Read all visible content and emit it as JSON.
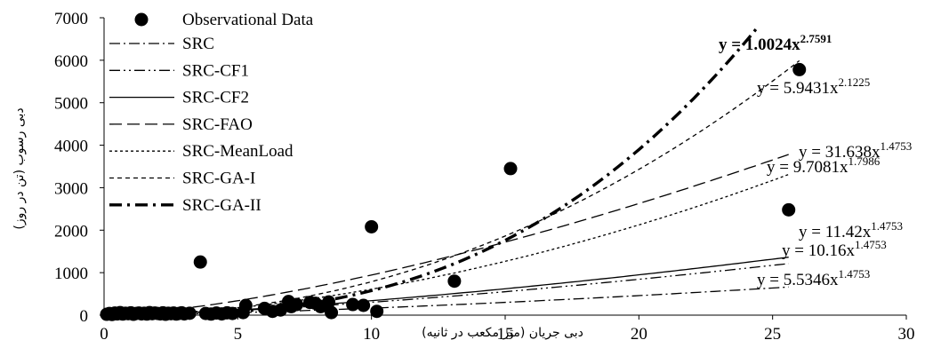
{
  "chart_data": {
    "type": "scatter",
    "xlabel": "دبی جریان (متر مکعب در ثانیه)",
    "ylabel": "دبی رسوب (تن در روز)",
    "xlim": [
      0,
      30
    ],
    "ylim": [
      0,
      7000
    ],
    "x_ticks": [
      "0",
      "5",
      "10",
      "15",
      "20",
      "25",
      "30"
    ],
    "y_ticks": [
      "0",
      "1000",
      "2000",
      "3000",
      "4000",
      "5000",
      "6000",
      "7000"
    ],
    "grid": false,
    "legend_position": "top-left",
    "observations": {
      "name": "Observational Data",
      "points": [
        [
          0.1,
          20
        ],
        [
          0.2,
          40
        ],
        [
          0.3,
          15
        ],
        [
          0.4,
          50
        ],
        [
          0.5,
          30
        ],
        [
          0.6,
          60
        ],
        [
          0.7,
          25
        ],
        [
          0.8,
          45
        ],
        [
          0.9,
          35
        ],
        [
          1.0,
          55
        ],
        [
          1.1,
          20
        ],
        [
          1.2,
          40
        ],
        [
          1.3,
          50
        ],
        [
          1.4,
          30
        ],
        [
          1.5,
          45
        ],
        [
          1.6,
          25
        ],
        [
          1.7,
          60
        ],
        [
          1.8,
          35
        ],
        [
          1.9,
          50
        ],
        [
          2.0,
          40
        ],
        [
          2.1,
          30
        ],
        [
          2.2,
          55
        ],
        [
          2.3,
          20
        ],
        [
          2.4,
          45
        ],
        [
          2.5,
          35
        ],
        [
          2.6,
          50
        ],
        [
          2.7,
          25
        ],
        [
          2.8,
          40
        ],
        [
          2.9,
          55
        ],
        [
          3.0,
          30
        ],
        [
          3.2,
          45
        ],
        [
          3.6,
          1250
        ],
        [
          3.8,
          40
        ],
        [
          4.0,
          25
        ],
        [
          4.2,
          50
        ],
        [
          4.4,
          30
        ],
        [
          4.6,
          55
        ],
        [
          4.8,
          40
        ],
        [
          5.3,
          230
        ],
        [
          5.2,
          60
        ],
        [
          6.0,
          160
        ],
        [
          6.3,
          90
        ],
        [
          6.6,
          120
        ],
        [
          6.9,
          320
        ],
        [
          7.0,
          200
        ],
        [
          7.2,
          250
        ],
        [
          7.7,
          300
        ],
        [
          7.9,
          280
        ],
        [
          8.1,
          200
        ],
        [
          8.4,
          310
        ],
        [
          8.5,
          60
        ],
        [
          9.3,
          250
        ],
        [
          9.7,
          230
        ],
        [
          10.0,
          2080
        ],
        [
          10.2,
          90
        ],
        [
          13.1,
          800
        ],
        [
          15.2,
          3450
        ],
        [
          25.6,
          2480
        ],
        [
          26.0,
          5780
        ]
      ]
    },
    "series": [
      {
        "name": "SRC",
        "a": 5.5346,
        "b": 1.4753,
        "x_max": 25.6,
        "equation": "y = 5.5346x",
        "exponent": "1.4753",
        "color": "#000000"
      },
      {
        "name": "SRC-CF1",
        "a": 10.16,
        "b": 1.4753,
        "x_max": 25.6,
        "equation": "y = 10.16x",
        "exponent": "1.4753",
        "color": "#000000"
      },
      {
        "name": "SRC-CF2",
        "a": 11.42,
        "b": 1.4753,
        "x_max": 25.6,
        "equation": "y = 11.42x",
        "exponent": "1.4753",
        "color": "#000000"
      },
      {
        "name": "SRC-FAO",
        "a": 31.638,
        "b": 1.4753,
        "x_max": 25.6,
        "equation": "y = 31.638x",
        "exponent": "1.4753",
        "color": "#000000"
      },
      {
        "name": "SRC-MeanLoad",
        "a": 9.7081,
        "b": 1.7986,
        "x_max": 25.6,
        "equation": "y = 9.7081x",
        "exponent": "1.7986",
        "color": "#000000"
      },
      {
        "name": "SRC-GA-I",
        "a": 5.9431,
        "b": 2.1225,
        "x_max": 26.0,
        "equation": "y = 5.9431x",
        "exponent": "2.1225",
        "color": "#000000"
      },
      {
        "name": "SRC-GA-II",
        "a": 1.0024,
        "b": 2.7591,
        "x_max": 24.5,
        "equation": "y = 1.0024x",
        "exponent": "2.7591",
        "color": "#000000"
      }
    ]
  }
}
